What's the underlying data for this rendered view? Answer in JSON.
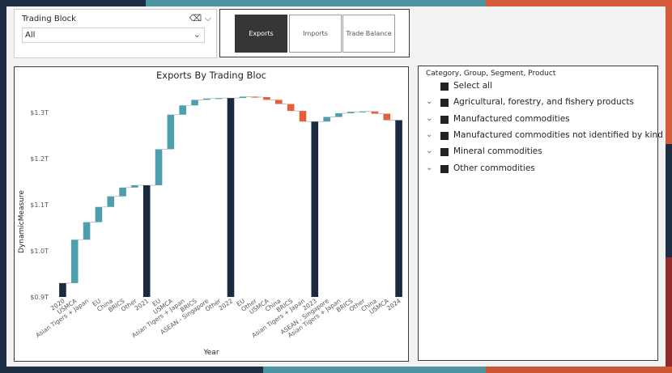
{
  "colors": {
    "dark_bar": "#1b2a41",
    "increase": "#4e9fae",
    "decrease": "#e2603c",
    "connector": "#b7b7b7"
  },
  "slicer": {
    "title": "Trading Block",
    "value": "All",
    "eraser_icon": "eraser-icon",
    "chevron_icon": "chevron-down-icon"
  },
  "buttons": [
    {
      "label": "Exports",
      "active": true
    },
    {
      "label": "Imports",
      "active": false
    },
    {
      "label": "Trade Balance",
      "active": false
    }
  ],
  "chart_data": {
    "type": "waterfall",
    "title": "Exports By Trading Bloc",
    "xlabel": "Year",
    "ylabel": "DynamicMeasure",
    "y_unit": "T",
    "ylim": [
      0.9,
      1.34
    ],
    "yticks": [
      {
        "value": 0.9,
        "label": "$0.9T"
      },
      {
        "value": 1.0,
        "label": "$1.0T"
      },
      {
        "value": 1.1,
        "label": "$1.1T"
      },
      {
        "value": 1.2,
        "label": "$1.2T"
      },
      {
        "value": 1.3,
        "label": "$1.3T"
      }
    ],
    "bars": [
      {
        "label": "2020",
        "kind": "total",
        "start": 0.9,
        "end": 0.93
      },
      {
        "label": "USMCA",
        "kind": "increase",
        "start": 0.93,
        "end": 1.024
      },
      {
        "label": "Asian Tigers + Japan",
        "kind": "increase",
        "start": 1.024,
        "end": 1.062
      },
      {
        "label": "EU",
        "kind": "increase",
        "start": 1.062,
        "end": 1.095
      },
      {
        "label": "China",
        "kind": "increase",
        "start": 1.095,
        "end": 1.118
      },
      {
        "label": "BRICS",
        "kind": "increase",
        "start": 1.118,
        "end": 1.137
      },
      {
        "label": "Other",
        "kind": "increase",
        "start": 1.137,
        "end": 1.142
      },
      {
        "label": "2021",
        "kind": "total",
        "start": 0.9,
        "end": 1.142
      },
      {
        "label": "EU",
        "kind": "increase",
        "start": 1.142,
        "end": 1.22
      },
      {
        "label": "USMCA",
        "kind": "increase",
        "start": 1.22,
        "end": 1.295
      },
      {
        "label": "Asian Tigers + Japan",
        "kind": "increase",
        "start": 1.295,
        "end": 1.315
      },
      {
        "label": "BRICS",
        "kind": "increase",
        "start": 1.315,
        "end": 1.327
      },
      {
        "label": "ASEAN - Singapore",
        "kind": "increase",
        "start": 1.327,
        "end": 1.33
      },
      {
        "label": "Other",
        "kind": "increase",
        "start": 1.33,
        "end": 1.331
      },
      {
        "label": "2022",
        "kind": "total",
        "start": 0.9,
        "end": 1.331
      },
      {
        "label": "EU",
        "kind": "increase",
        "start": 1.331,
        "end": 1.334
      },
      {
        "label": "Other",
        "kind": "decrease",
        "start": 1.334,
        "end": 1.333
      },
      {
        "label": "USMCA",
        "kind": "decrease",
        "start": 1.333,
        "end": 1.327
      },
      {
        "label": "China",
        "kind": "decrease",
        "start": 1.327,
        "end": 1.318
      },
      {
        "label": "BRICS",
        "kind": "decrease",
        "start": 1.318,
        "end": 1.303
      },
      {
        "label": "Asian Tigers + Japan",
        "kind": "decrease",
        "start": 1.303,
        "end": 1.28
      },
      {
        "label": "2023",
        "kind": "total",
        "start": 0.9,
        "end": 1.28
      },
      {
        "label": "ASEAN - Singapore",
        "kind": "increase",
        "start": 1.28,
        "end": 1.29
      },
      {
        "label": "Asian Tigers + Japan",
        "kind": "increase",
        "start": 1.29,
        "end": 1.298
      },
      {
        "label": "BRICS",
        "kind": "increase",
        "start": 1.298,
        "end": 1.301
      },
      {
        "label": "Other",
        "kind": "increase",
        "start": 1.301,
        "end": 1.302
      },
      {
        "label": "China",
        "kind": "decrease",
        "start": 1.302,
        "end": 1.297
      },
      {
        "label": "USMCA",
        "kind": "decrease",
        "start": 1.297,
        "end": 1.283
      },
      {
        "label": "2024",
        "kind": "total",
        "start": 0.9,
        "end": 1.283
      }
    ]
  },
  "filter_list": {
    "header": "Category, Group, Segment, Product",
    "items": [
      {
        "label": "Select all",
        "expandable": false
      },
      {
        "label": "Agricultural, forestry, and fishery products",
        "expandable": true
      },
      {
        "label": "Manufactured commodities",
        "expandable": true
      },
      {
        "label": "Manufactured commodities not identified by kind",
        "expandable": true
      },
      {
        "label": "Mineral commodities",
        "expandable": true
      },
      {
        "label": "Other commodities",
        "expandable": true
      }
    ]
  }
}
